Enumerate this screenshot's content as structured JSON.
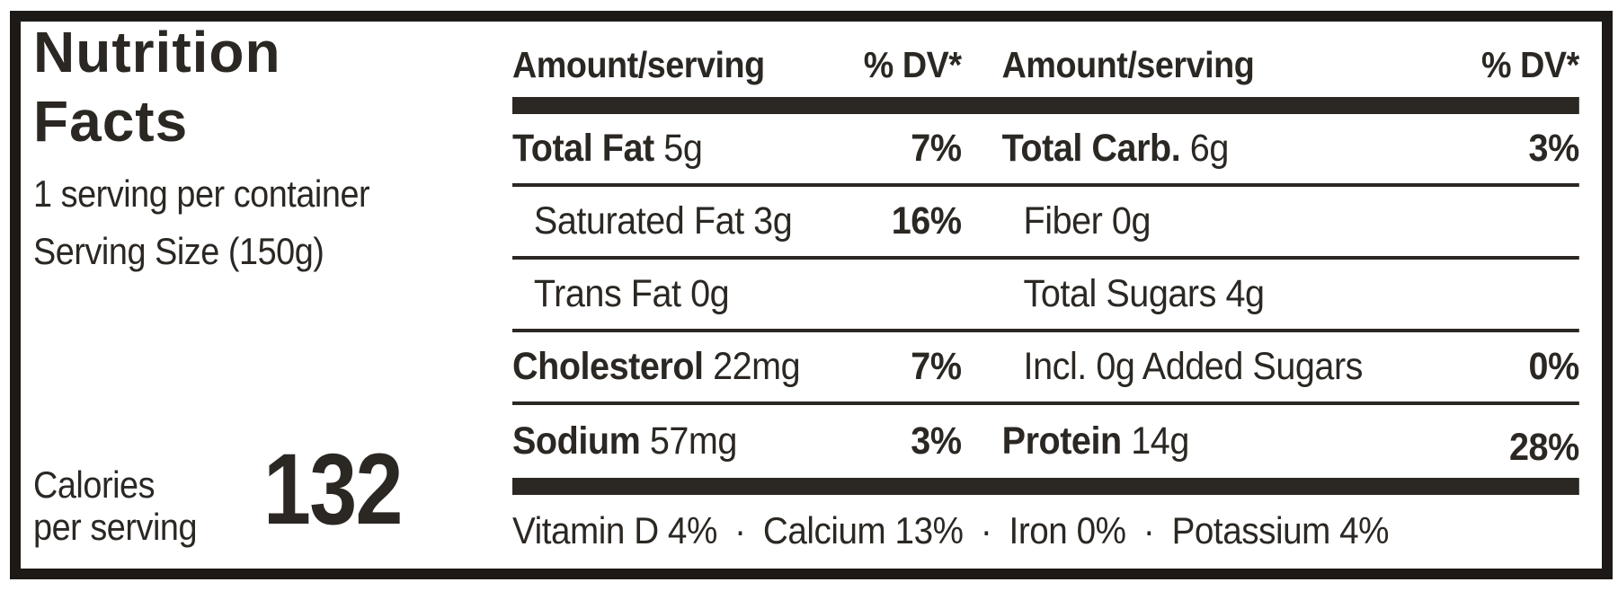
{
  "colors": {
    "text": "#2b2723",
    "border": "#1c1916"
  },
  "label": {
    "title_line1": "Nutrition",
    "title_line2": "Facts",
    "servings_per_container": "1 serving per container",
    "serving_size": "Serving Size (150g)",
    "calories_label_line1": "Calories",
    "calories_label_line2": "per serving",
    "calories_value": "132"
  },
  "table": {
    "header": {
      "amount_label": "Amount/serving",
      "dv_label": "% DV*"
    },
    "rows": [
      {
        "left": {
          "name": "Total Fat",
          "amount": "5g",
          "dv": "7%",
          "emphasis": true,
          "indent": false
        },
        "right": {
          "name": "Total Carb.",
          "amount": "6g",
          "dv": "3%",
          "emphasis": true,
          "indent": false
        }
      },
      {
        "left": {
          "name": "Saturated Fat",
          "amount": "3g",
          "dv": "16%",
          "emphasis": false,
          "indent": true
        },
        "right": {
          "name": "Fiber",
          "amount": "0g",
          "dv": "",
          "emphasis": false,
          "indent": true
        }
      },
      {
        "left": {
          "name": "Trans Fat",
          "amount": "0g",
          "dv": "",
          "emphasis": false,
          "indent": true
        },
        "right": {
          "name": "Total Sugars",
          "amount": "4g",
          "dv": "",
          "emphasis": false,
          "indent": true
        }
      },
      {
        "left": {
          "name": "Cholesterol",
          "amount": "22mg",
          "dv": "7%",
          "emphasis": true,
          "indent": false
        },
        "right": {
          "name": "Incl. 0g Added Sugars",
          "amount": "",
          "dv": "0%",
          "emphasis": false,
          "indent": true
        }
      },
      {
        "left": {
          "name": "Sodium",
          "amount": "57mg",
          "dv": "3%",
          "emphasis": true,
          "indent": false
        },
        "right": {
          "name": "Protein",
          "amount": "14g",
          "dv": "28%",
          "emphasis": true,
          "indent": false
        }
      }
    ],
    "vitamins": [
      "Vitamin D 4%",
      "Calcium 13%",
      "Iron 0%",
      "Potassium 4%"
    ],
    "vitamin_separator": "·"
  }
}
